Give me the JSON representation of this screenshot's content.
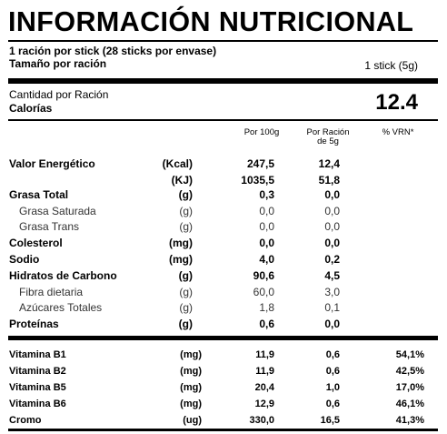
{
  "title": "INFORMACIÓN NUTRICIONAL",
  "serving": {
    "line1": "1 ración por stick (28 sticks por envase)",
    "line2_label": "Tamaño por ración",
    "line2_value": "1 stick (5g)"
  },
  "calories": {
    "label_top": "Cantidad por Ración",
    "label": "Calorías",
    "value": "12.4"
  },
  "headers": {
    "per100": "Por 100g",
    "perServing_line1": "Por Ración",
    "perServing_line2": "de 5g",
    "vrn": "% VRN*"
  },
  "rows": [
    {
      "label": "Valor Energético",
      "unit": "(Kcal)",
      "per100": "247,5",
      "perServ": "12,4",
      "vrn": "",
      "bold": true
    },
    {
      "label": "",
      "unit": "(KJ)",
      "per100": "1035,5",
      "perServ": "51,8",
      "vrn": "",
      "bold": true
    },
    {
      "label": "Grasa Total",
      "unit": "(g)",
      "per100": "0,3",
      "perServ": "0,0",
      "vrn": "",
      "bold": true
    },
    {
      "label": "Grasa Saturada",
      "unit": "(g)",
      "per100": "0,0",
      "perServ": "0,0",
      "vrn": "",
      "bold": false
    },
    {
      "label": "Grasa Trans",
      "unit": "(g)",
      "per100": "0,0",
      "perServ": "0,0",
      "vrn": "",
      "bold": false
    },
    {
      "label": "Colesterol",
      "unit": "(mg)",
      "per100": "0,0",
      "perServ": "0,0",
      "vrn": "",
      "bold": true
    },
    {
      "label": "Sodio",
      "unit": "(mg)",
      "per100": "4,0",
      "perServ": "0,2",
      "vrn": "",
      "bold": true
    },
    {
      "label": "Hidratos de Carbono",
      "unit": "(g)",
      "per100": "90,6",
      "perServ": "4,5",
      "vrn": "",
      "bold": true
    },
    {
      "label": "Fibra dietaria",
      "unit": "(g)",
      "per100": "60,0",
      "perServ": "3,0",
      "vrn": "",
      "bold": false
    },
    {
      "label": "Azúcares Totales",
      "unit": "(g)",
      "per100": "1,8",
      "perServ": "0,1",
      "vrn": "",
      "bold": false
    },
    {
      "label": "Proteínas",
      "unit": "(g)",
      "per100": "0,6",
      "perServ": "0,0",
      "vrn": "",
      "bold": true
    }
  ],
  "vitamins": [
    {
      "label": "Vitamina B1",
      "unit": "(mg)",
      "per100": "11,9",
      "perServ": "0,6",
      "vrn": "54,1%"
    },
    {
      "label": "Vitamina B2",
      "unit": "(mg)",
      "per100": "11,9",
      "perServ": "0,6",
      "vrn": "42,5%"
    },
    {
      "label": "Vitamina B5",
      "unit": "(mg)",
      "per100": "20,4",
      "perServ": "1,0",
      "vrn": "17,0%"
    },
    {
      "label": "Vitamina B6",
      "unit": "(mg)",
      "per100": "12,9",
      "perServ": "0,6",
      "vrn": "46,1%"
    },
    {
      "label": "Cromo",
      "unit": "(ug)",
      "per100": "330,0",
      "perServ": "16,5",
      "vrn": "41,3%"
    }
  ]
}
